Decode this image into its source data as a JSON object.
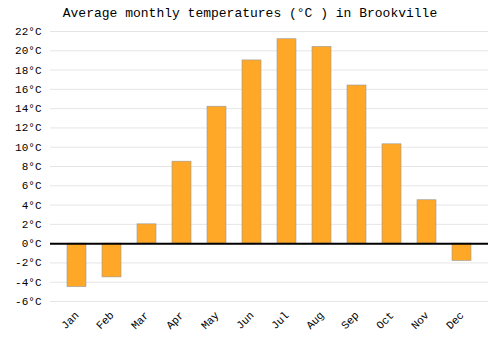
{
  "chart_data": {
    "type": "bar",
    "title": "Average monthly temperatures (°C ) in Brookville",
    "categories": [
      "Jan",
      "Feb",
      "Mar",
      "Apr",
      "May",
      "Jun",
      "Jul",
      "Aug",
      "Sep",
      "Oct",
      "Nov",
      "Dec"
    ],
    "values": [
      -4.5,
      -3.5,
      2.0,
      8.5,
      14.2,
      19.0,
      21.2,
      20.4,
      16.4,
      10.3,
      4.5,
      -1.8
    ],
    "color": "#FFA726",
    "ylim": [
      -6,
      22
    ],
    "yticks": [
      {
        "value": -6,
        "label": "-6°C"
      },
      {
        "value": -4,
        "label": "-4°C"
      },
      {
        "value": -2,
        "label": "-2°C"
      },
      {
        "value": 0,
        "label": "0°C"
      },
      {
        "value": 2,
        "label": "2°C"
      },
      {
        "value": 4,
        "label": "4°C"
      },
      {
        "value": 6,
        "label": "6°C"
      },
      {
        "value": 8,
        "label": "8°C"
      },
      {
        "value": 10,
        "label": "10°C"
      },
      {
        "value": 12,
        "label": "12°C"
      },
      {
        "value": 14,
        "label": "14°C"
      },
      {
        "value": 16,
        "label": "16°C"
      },
      {
        "value": 18,
        "label": "18°C"
      },
      {
        "value": 20,
        "label": "20°C"
      },
      {
        "value": 22,
        "label": "22°C"
      }
    ],
    "grid": true
  }
}
